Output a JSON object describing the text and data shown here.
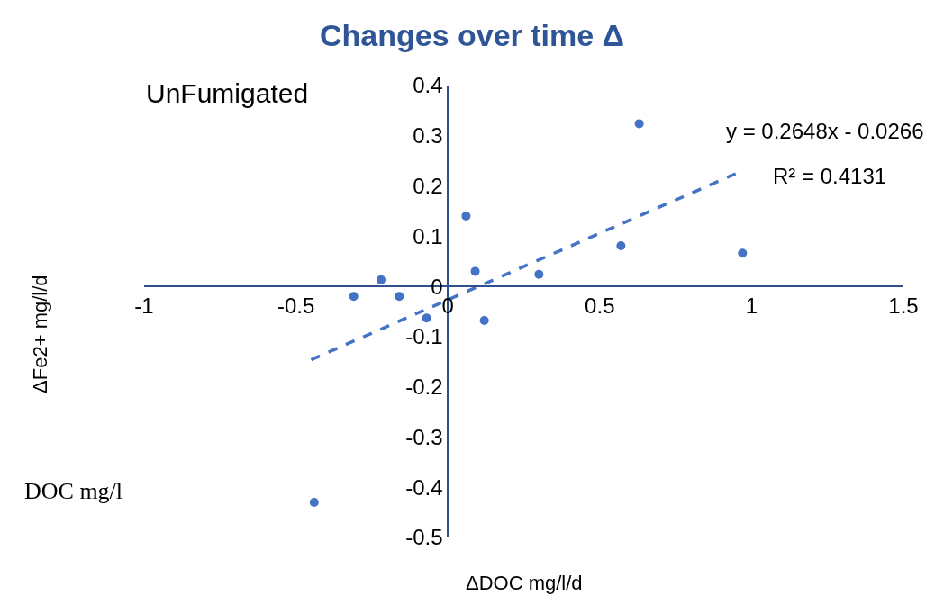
{
  "chart_data": {
    "type": "scatter",
    "title": "Changes over time Δ",
    "xlabel": "ΔDOC mg/l/d",
    "ylabel": "ΔFe2+ mg/l/d",
    "annotations": [
      "UnFumigated",
      "y = 0.2648x - 0.0266",
      "R² = 0.4131",
      "DOC mg/l"
    ],
    "xlim": [
      -1,
      1.5
    ],
    "xticks": [
      -1,
      -0.5,
      0,
      0.5,
      1,
      1.5
    ],
    "ylim": [
      -0.5,
      0.4
    ],
    "yticks": [
      -0.5,
      -0.4,
      -0.3,
      -0.2,
      -0.1,
      0,
      0.1,
      0.2,
      0.3,
      0.4
    ],
    "series": [
      {
        "color": "#4472c4",
        "marker": "circle",
        "x": [
          -0.31,
          -0.22,
          -0.16,
          -0.07,
          0.06,
          0.09,
          0.12,
          0.3,
          0.57,
          0.63,
          0.97,
          -0.44
        ],
        "values": [
          -0.02,
          0.013,
          -0.02,
          -0.063,
          0.14,
          0.03,
          -0.068,
          0.024,
          0.081,
          0.324,
          0.066,
          -0.43
        ]
      },
      {
        "type": "line",
        "color": "#4472c4",
        "marker": "none",
        "line_style": "dashed",
        "x": [
          -0.45,
          0.95
        ],
        "values": [
          -0.146,
          0.225
        ]
      }
    ]
  }
}
